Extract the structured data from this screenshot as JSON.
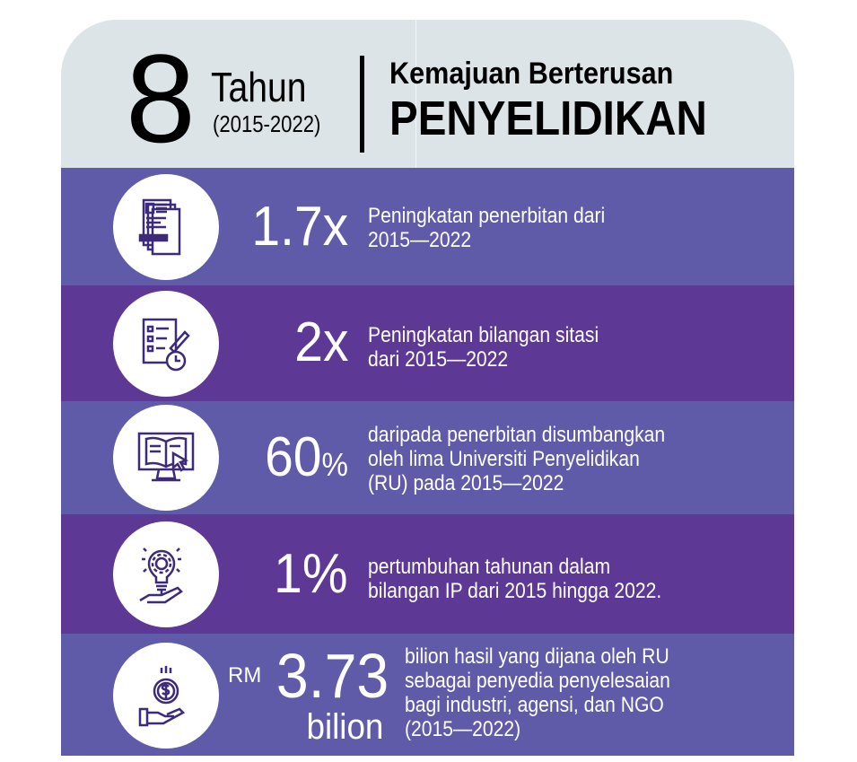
{
  "header": {
    "number": "8",
    "unit": "Tahun",
    "years": "(2015-2022)",
    "title_line1": "Kemajuan Berterusan",
    "title_line2": "PENYELIDIKAN"
  },
  "colors": {
    "header_bg": "#dde4e7",
    "row_light": "#5f5ba8",
    "row_dark": "#5d3894",
    "text": "#ffffff"
  },
  "rows": [
    {
      "icon": "documents-icon",
      "stat": "1.7x",
      "desc": [
        "Peningkatan penerbitan dari",
        "2015—2022"
      ]
    },
    {
      "icon": "checklist-clock-icon",
      "stat": "2x",
      "desc": [
        "Peningkatan bilangan sitasi",
        "dari 2015—2022"
      ]
    },
    {
      "icon": "monitor-book-icon",
      "stat": "60",
      "stat_suffix": "%",
      "desc": [
        "daripada penerbitan disumbangkan",
        "oleh lima Universiti Penyelidikan",
        "(RU) pada 2015—2022"
      ]
    },
    {
      "icon": "lightbulb-gear-hand-icon",
      "stat": "1%",
      "desc": [
        "pertumbuhan tahunan dalam",
        "bilangan IP dari 2015 hingga 2022."
      ]
    },
    {
      "icon": "dollar-coin-hand-icon",
      "prefix": "RM",
      "stat": "3.73",
      "stat_unit": "bilion",
      "desc": [
        "bilion hasil yang dijana oleh RU",
        "sebagai penyedia penyelesaian",
        "bagi industri, agensi, dan NGO",
        "(2015—2022)"
      ]
    }
  ]
}
